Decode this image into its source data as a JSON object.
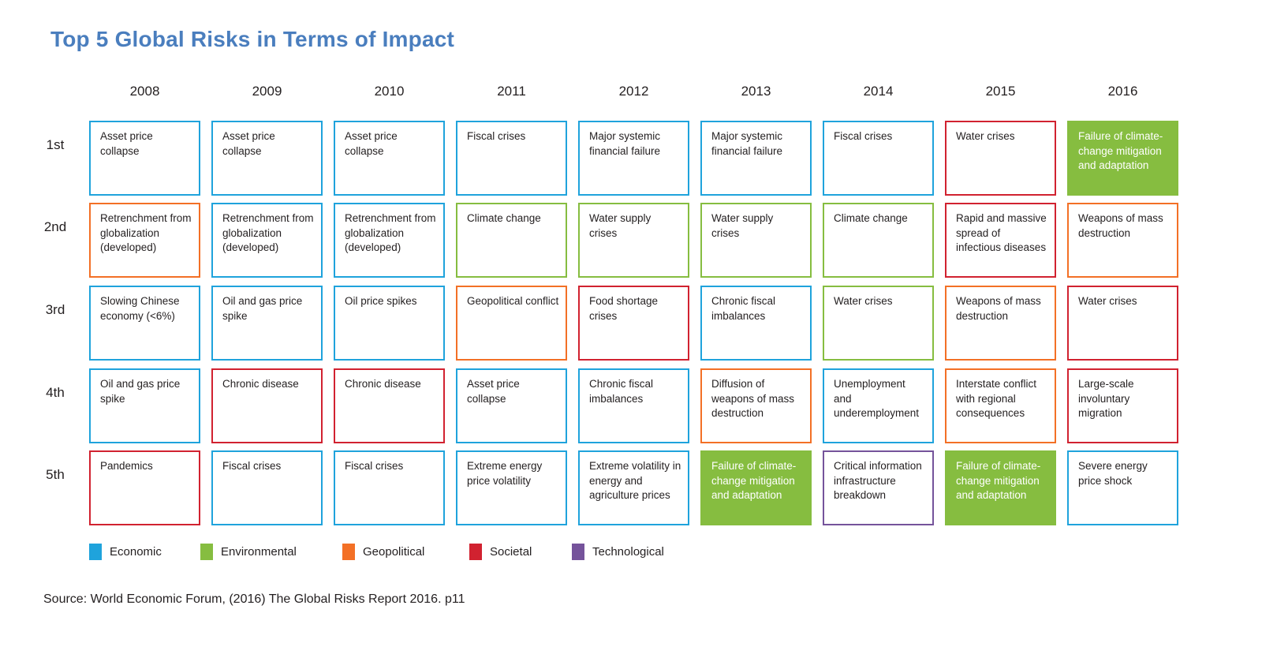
{
  "title": "Top 5 Global Risks in Terms of Impact",
  "source": "Source: World Economic Forum, (2016) The Global Risks Report 2016. p11",
  "colors": {
    "economic": "#1FA3DC",
    "environmental": "#86BD40",
    "geopolitical": "#F37026",
    "societal": "#D12230",
    "technological": "#75539B",
    "title": "#4A7EBE",
    "text": "#231F20",
    "filled_text": "#FFFFFF"
  },
  "legend": [
    {
      "label": "Economic",
      "category": "economic"
    },
    {
      "label": "Environmental",
      "category": "environmental"
    },
    {
      "label": "Geopolitical",
      "category": "geopolitical"
    },
    {
      "label": "Societal",
      "category": "societal"
    },
    {
      "label": "Technological",
      "category": "technological"
    }
  ],
  "chart_data": {
    "type": "table",
    "title": "Top 5 Global Risks in Terms of Impact",
    "years": [
      "2008",
      "2009",
      "2010",
      "2011",
      "2012",
      "2013",
      "2014",
      "2015",
      "2016"
    ],
    "ranks": [
      "1st",
      "2nd",
      "3rd",
      "4th",
      "5th"
    ],
    "legend_position": "bottom",
    "columns": [
      {
        "year": "2008",
        "risks": [
          {
            "rank": "1st",
            "label": "Asset price collapse",
            "category": "economic",
            "filled": false
          },
          {
            "rank": "2nd",
            "label": "Retrenchment from globalization (developed)",
            "category": "geopolitical",
            "filled": false
          },
          {
            "rank": "3rd",
            "label": "Slowing Chinese economy (<6%)",
            "category": "economic",
            "filled": false
          },
          {
            "rank": "4th",
            "label": "Oil and gas price spike",
            "category": "economic",
            "filled": false
          },
          {
            "rank": "5th",
            "label": "Pandemics",
            "category": "societal",
            "filled": false
          }
        ]
      },
      {
        "year": "2009",
        "risks": [
          {
            "rank": "1st",
            "label": "Asset price collapse",
            "category": "economic",
            "filled": false
          },
          {
            "rank": "2nd",
            "label": "Retrenchment from globalization (developed)",
            "category": "economic",
            "filled": false
          },
          {
            "rank": "3rd",
            "label": "Oil and gas price spike",
            "category": "economic",
            "filled": false
          },
          {
            "rank": "4th",
            "label": "Chronic disease",
            "category": "societal",
            "filled": false
          },
          {
            "rank": "5th",
            "label": "Fiscal crises",
            "category": "economic",
            "filled": false
          }
        ]
      },
      {
        "year": "2010",
        "risks": [
          {
            "rank": "1st",
            "label": "Asset price collapse",
            "category": "economic",
            "filled": false
          },
          {
            "rank": "2nd",
            "label": "Retrenchment from globalization (developed)",
            "category": "economic",
            "filled": false
          },
          {
            "rank": "3rd",
            "label": "Oil price spikes",
            "category": "economic",
            "filled": false
          },
          {
            "rank": "4th",
            "label": "Chronic disease",
            "category": "societal",
            "filled": false
          },
          {
            "rank": "5th",
            "label": "Fiscal crises",
            "category": "economic",
            "filled": false
          }
        ]
      },
      {
        "year": "2011",
        "risks": [
          {
            "rank": "1st",
            "label": "Fiscal crises",
            "category": "economic",
            "filled": false
          },
          {
            "rank": "2nd",
            "label": "Climate change",
            "category": "environmental",
            "filled": false
          },
          {
            "rank": "3rd",
            "label": "Geopolitical conflict",
            "category": "geopolitical",
            "filled": false
          },
          {
            "rank": "4th",
            "label": "Asset price collapse",
            "category": "economic",
            "filled": false
          },
          {
            "rank": "5th",
            "label": "Extreme energy price volatility",
            "category": "economic",
            "filled": false
          }
        ]
      },
      {
        "year": "2012",
        "risks": [
          {
            "rank": "1st",
            "label": "Major systemic financial failure",
            "category": "economic",
            "filled": false
          },
          {
            "rank": "2nd",
            "label": "Water supply crises",
            "category": "environmental",
            "filled": false
          },
          {
            "rank": "3rd",
            "label": "Food shortage crises",
            "category": "societal",
            "filled": false
          },
          {
            "rank": "4th",
            "label": "Chronic fiscal imbalances",
            "category": "economic",
            "filled": false
          },
          {
            "rank": "5th",
            "label": "Extreme volatility in energy and agriculture prices",
            "category": "economic",
            "filled": false
          }
        ]
      },
      {
        "year": "2013",
        "risks": [
          {
            "rank": "1st",
            "label": "Major systemic financial failure",
            "category": "economic",
            "filled": false
          },
          {
            "rank": "2nd",
            "label": "Water supply crises",
            "category": "environmental",
            "filled": false
          },
          {
            "rank": "3rd",
            "label": "Chronic fiscal imbalances",
            "category": "economic",
            "filled": false
          },
          {
            "rank": "4th",
            "label": "Diffusion of weapons of mass destruction",
            "category": "geopolitical",
            "filled": false
          },
          {
            "rank": "5th",
            "label": "Failure of climate-change mitigation\nand adaptation",
            "category": "environmental",
            "filled": true
          }
        ]
      },
      {
        "year": "2014",
        "risks": [
          {
            "rank": "1st",
            "label": "Fiscal crises",
            "category": "economic",
            "filled": false
          },
          {
            "rank": "2nd",
            "label": "Climate change",
            "category": "environmental",
            "filled": false
          },
          {
            "rank": "3rd",
            "label": "Water crises",
            "category": "environmental",
            "filled": false
          },
          {
            "rank": "4th",
            "label": "Unemployment and underemployment",
            "category": "economic",
            "filled": false
          },
          {
            "rank": "5th",
            "label": "Critical information infrastructure breakdown",
            "category": "technological",
            "filled": false
          }
        ]
      },
      {
        "year": "2015",
        "risks": [
          {
            "rank": "1st",
            "label": "Water crises",
            "category": "societal",
            "filled": false
          },
          {
            "rank": "2nd",
            "label": "Rapid and massive spread of infectious diseases",
            "category": "societal",
            "filled": false
          },
          {
            "rank": "3rd",
            "label": "Weapons of mass destruction",
            "category": "geopolitical",
            "filled": false
          },
          {
            "rank": "4th",
            "label": "Interstate conflict with regional consequences",
            "category": "geopolitical",
            "filled": false
          },
          {
            "rank": "5th",
            "label": "Failure of climate-change mitigation\nand adaptation",
            "category": "environmental",
            "filled": true
          }
        ]
      },
      {
        "year": "2016",
        "risks": [
          {
            "rank": "1st",
            "label": "Failure of climate-change mitigation\nand adaptation",
            "category": "environmental",
            "filled": true
          },
          {
            "rank": "2nd",
            "label": "Weapons of mass destruction",
            "category": "geopolitical",
            "filled": false
          },
          {
            "rank": "3rd",
            "label": "Water crises",
            "category": "societal",
            "filled": false
          },
          {
            "rank": "4th",
            "label": "Large-scale involuntary migration",
            "category": "societal",
            "filled": false
          },
          {
            "rank": "5th",
            "label": "Severe energy price shock",
            "category": "economic",
            "filled": false
          }
        ]
      }
    ]
  }
}
